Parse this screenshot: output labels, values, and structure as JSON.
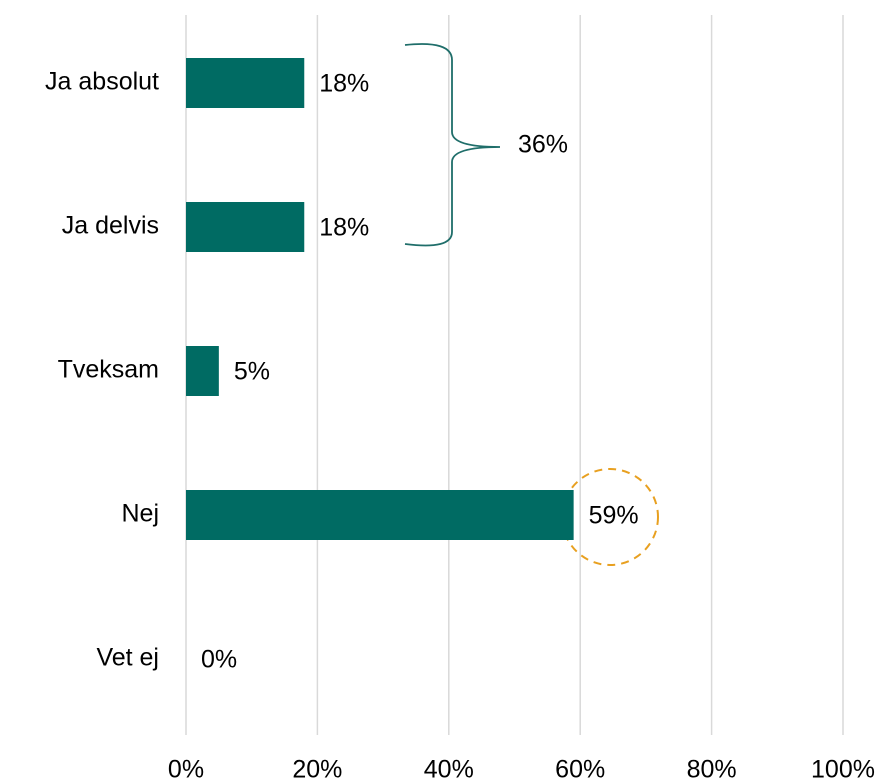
{
  "chart_data": {
    "type": "hbar",
    "categories": [
      "Ja absolut",
      "Ja delvis",
      "Tveksam",
      "Nej",
      "Vet ej"
    ],
    "values": [
      18,
      18,
      5,
      59,
      0
    ],
    "value_labels": [
      "18%",
      "18%",
      "5%",
      "59%",
      "0%"
    ],
    "color": "#006b63",
    "xlim": [
      0,
      100
    ],
    "xticks": [
      {
        "value": 0,
        "label": "0%"
      },
      {
        "value": 20,
        "label": "20%"
      },
      {
        "value": 40,
        "label": "40%"
      },
      {
        "value": 60,
        "label": "60%"
      },
      {
        "value": 80,
        "label": "80%"
      },
      {
        "value": 100,
        "label": "100%"
      }
    ],
    "grid": true,
    "annotations": [
      "36%"
    ]
  }
}
